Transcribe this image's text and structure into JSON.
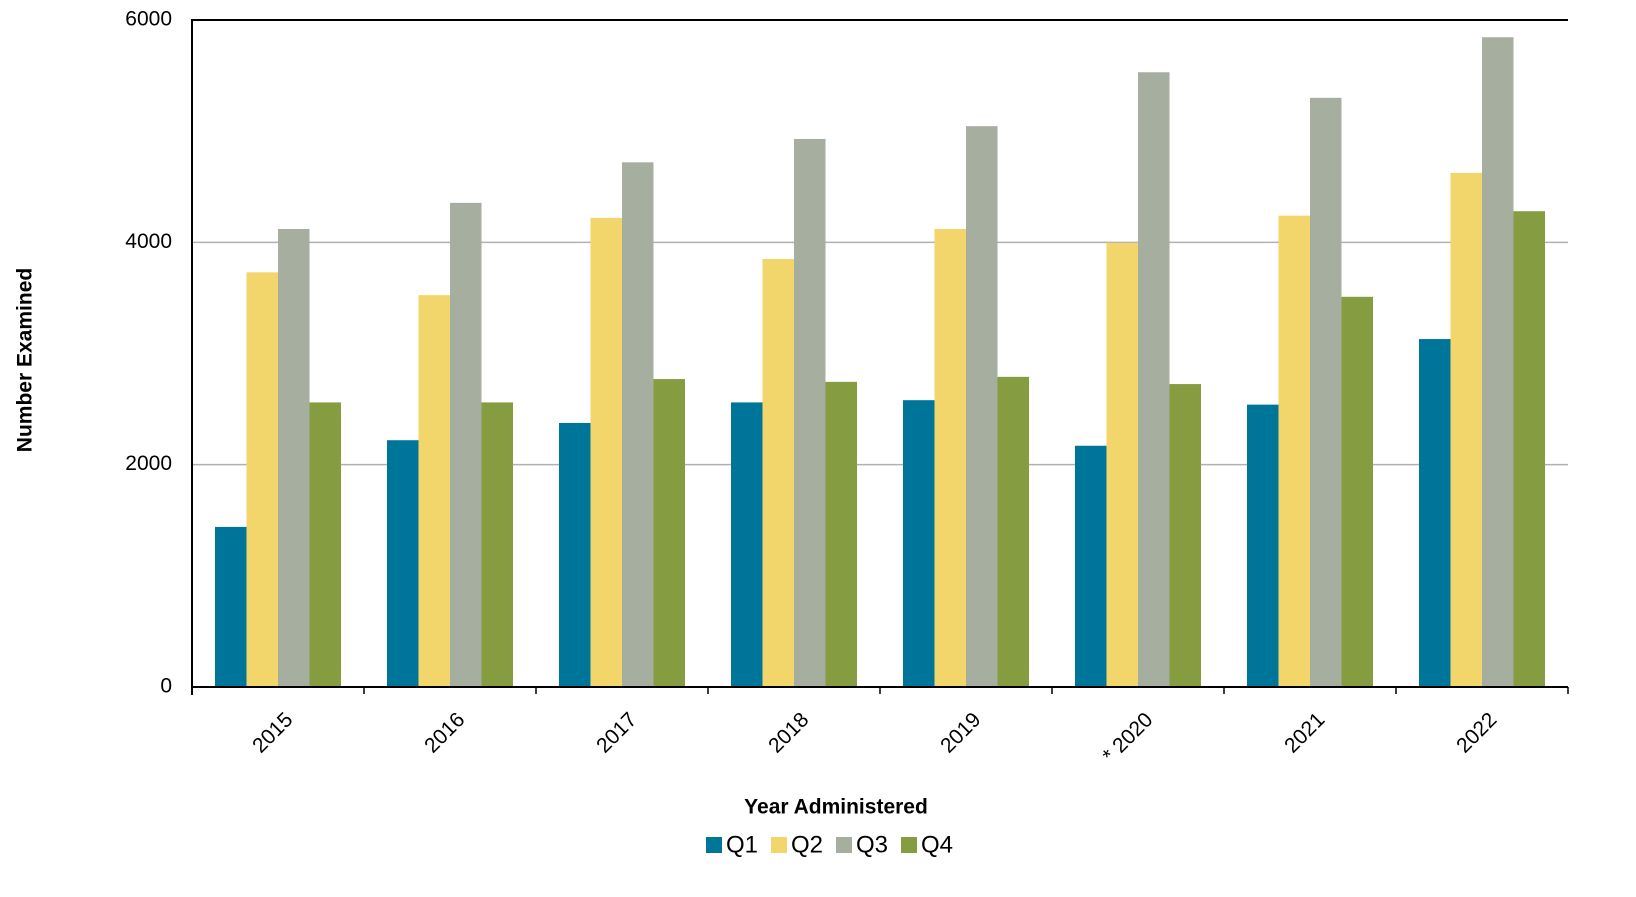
{
  "chart_data": {
    "type": "bar",
    "x_label": "Year Administered",
    "y_label": "Number Examined",
    "categories": [
      "2015",
      "2016",
      "2017",
      "2018",
      "2019",
      "* 2020",
      "2021",
      "2022"
    ],
    "series": [
      {
        "name": "Q1",
        "color": "#00759a",
        "values": [
          1440,
          2220,
          2375,
          2560,
          2580,
          2170,
          2540,
          3130
        ]
      },
      {
        "name": "Q2",
        "color": "#f3d66b",
        "values": [
          3730,
          3525,
          4220,
          3850,
          4120,
          3995,
          4240,
          4625
        ]
      },
      {
        "name": "Q3",
        "color": "#a6aea0",
        "values": [
          4120,
          4355,
          4720,
          4930,
          5045,
          5530,
          5300,
          5845
        ]
      },
      {
        "name": "Q4",
        "color": "#869c40",
        "values": [
          2560,
          2560,
          2770,
          2745,
          2790,
          2725,
          3510,
          4280
        ]
      }
    ],
    "ylim": [
      0,
      6000
    ],
    "yticks": [
      0,
      2000,
      4000,
      6000
    ],
    "grid": true,
    "legend": "bottom"
  }
}
